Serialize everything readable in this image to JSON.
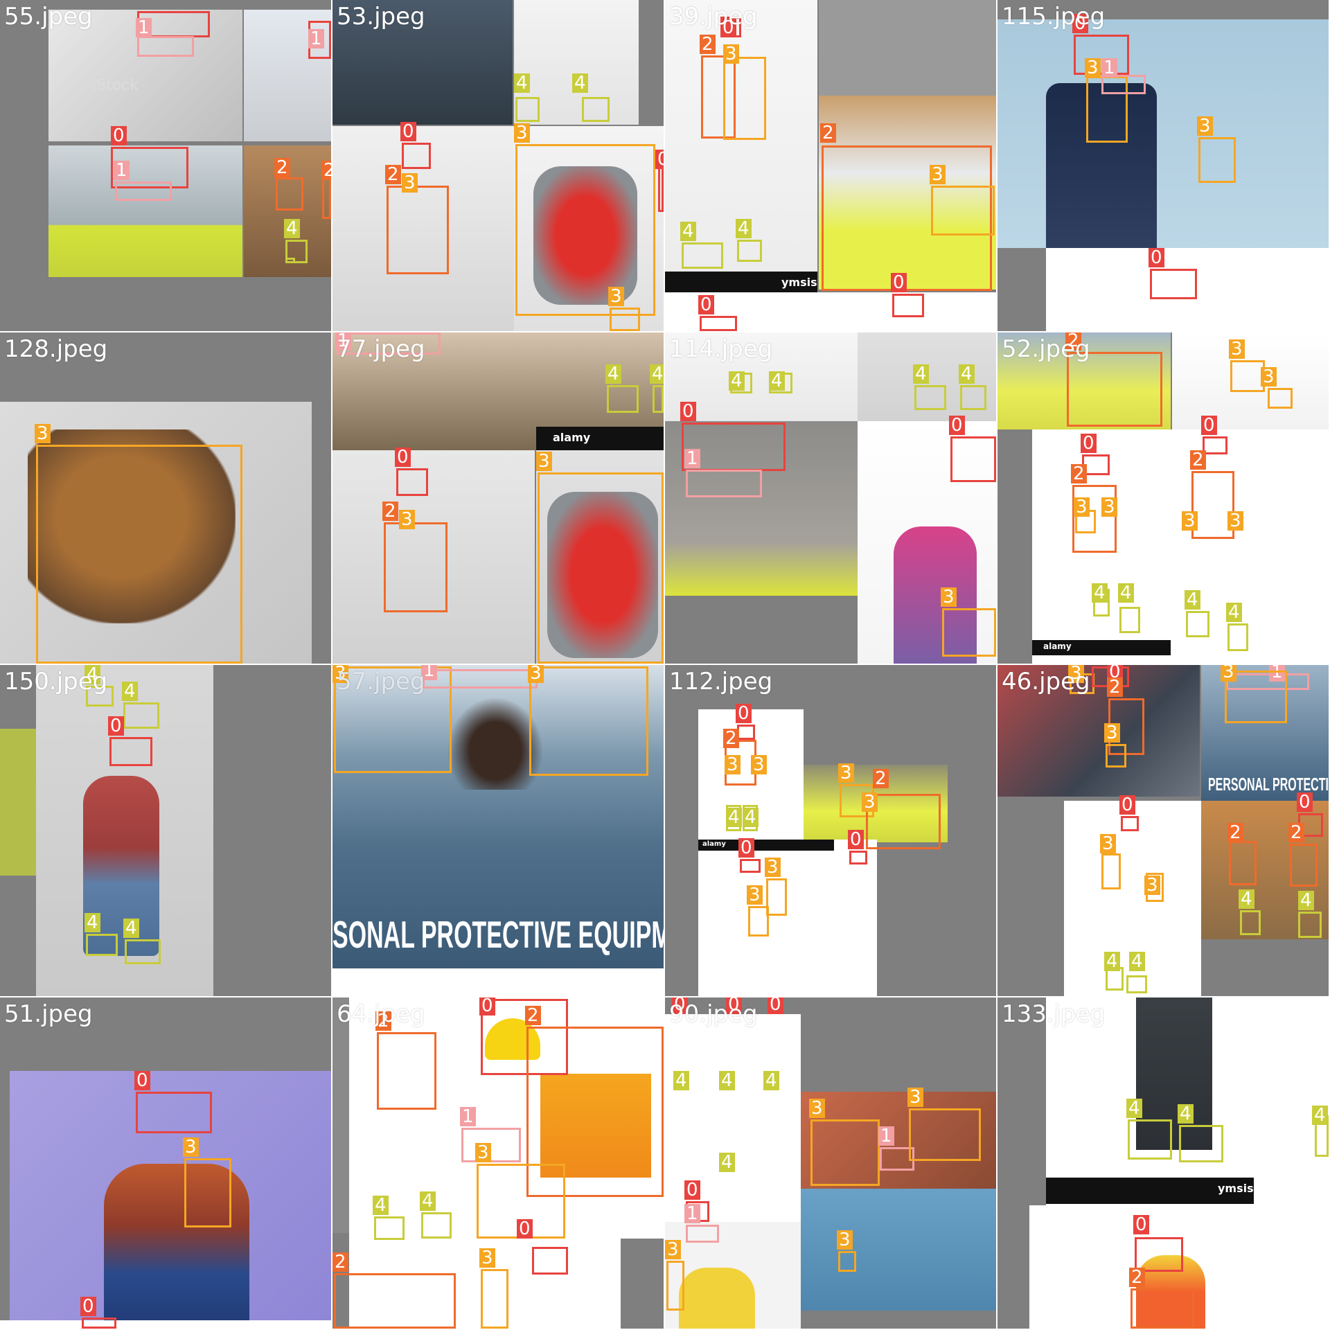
{
  "mosaic": {
    "class_colors": {
      "0": "#e8433f",
      "1": "#f2a0a3",
      "2": "#ef6b2c",
      "3": "#f5a623",
      "4": "#c8cd3a"
    },
    "tiles": [
      {
        "name": "55.jpeg",
        "class_tags": [
          "1",
          "1",
          "0",
          "1",
          "2",
          "2",
          "4",
          "4"
        ],
        "watermark": "iStock"
      },
      {
        "name": "53.jpeg",
        "class_tags": [
          "4",
          "4",
          "3",
          "0",
          "2",
          "3",
          "0",
          "3"
        ],
        "watermark": ""
      },
      {
        "name": "39.jpeg",
        "class_tags": [
          "0",
          "2",
          "3",
          "2",
          "3",
          "4",
          "4",
          "0",
          "0"
        ],
        "watermark": "ymsis"
      },
      {
        "name": "115.jpeg",
        "class_tags": [
          "0",
          "3",
          "1",
          "3",
          "0"
        ],
        "watermark": ""
      },
      {
        "name": "128.jpeg",
        "class_tags": [
          "3"
        ],
        "watermark": ""
      },
      {
        "name": "77.jpeg",
        "class_tags": [
          "1",
          "4",
          "4",
          "0",
          "2",
          "3",
          "3"
        ],
        "watermark": "alamy"
      },
      {
        "name": "114.jpeg",
        "class_tags": [
          "4",
          "4",
          "4",
          "4",
          "0",
          "1",
          "0",
          "3"
        ],
        "watermark": ""
      },
      {
        "name": "52.jpeg",
        "class_tags": [
          "2",
          "3",
          "3",
          "0",
          "0",
          "2",
          "2",
          "3",
          "3",
          "3",
          "3",
          "4",
          "4",
          "4",
          "4"
        ],
        "watermark": "alamy"
      },
      {
        "name": "150.jpeg",
        "class_tags": [
          "4",
          "4",
          "0",
          "4",
          "4"
        ],
        "watermark": ""
      },
      {
        "name": "57.jpeg",
        "class_tags": [
          "3",
          "1",
          "3"
        ],
        "watermark": ""
      },
      {
        "name": "112.jpeg",
        "class_tags": [
          "0",
          "2",
          "3",
          "3",
          "4",
          "4",
          "3",
          "2",
          "3",
          "0",
          "0",
          "3",
          "3"
        ],
        "watermark": "alamy"
      },
      {
        "name": "46.jpeg",
        "class_tags": [
          "3",
          "0",
          "2",
          "3",
          "0",
          "3",
          "3",
          "4",
          "4",
          "0",
          "2",
          "2",
          "4",
          "4",
          "1",
          "3"
        ],
        "watermark": "PERSONAL PROTECTIVE"
      },
      {
        "name": "51.jpeg",
        "class_tags": [
          "0",
          "3",
          "0"
        ],
        "watermark": ""
      },
      {
        "name": "64.jpeg",
        "class_tags": [
          "2",
          "0",
          "2",
          "1",
          "3",
          "4",
          "4",
          "0",
          "2",
          "3"
        ],
        "watermark": ""
      },
      {
        "name": "90.jpeg",
        "class_tags": [
          "0",
          "0",
          "0",
          "4",
          "4",
          "4",
          "4",
          "3",
          "1",
          "3",
          "0",
          "1",
          "3",
          "3"
        ],
        "watermark": ""
      },
      {
        "name": "133.jpeg",
        "class_tags": [
          "4",
          "4",
          "4",
          "0",
          "2"
        ],
        "watermark": "ymsis"
      }
    ],
    "banner_text": "SONAL PROTECTIVE EQUIPME"
  }
}
